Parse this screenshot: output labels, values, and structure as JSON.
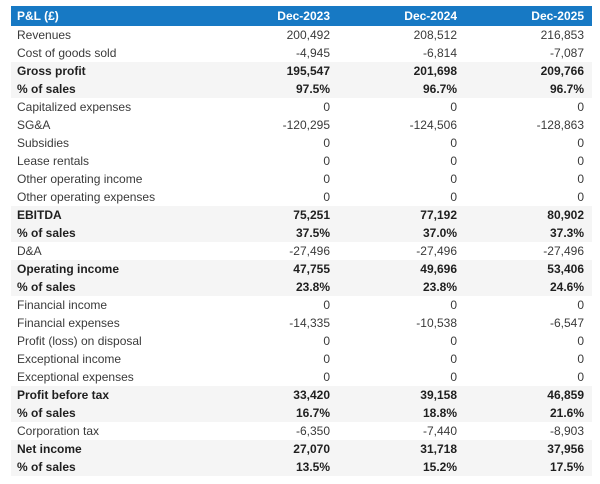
{
  "colors": {
    "header_bg": "#1779c4",
    "header_text": "#ffffff",
    "emphasis_row_bg": "#f5f5f5",
    "body_text": "#3a3a3a"
  },
  "chart_data": {
    "type": "table",
    "title": "P&L (£)",
    "columns": [
      "P&L (£)",
      "Dec-2023",
      "Dec-2024",
      "Dec-2025"
    ],
    "rows": [
      {
        "label": "Revenues",
        "values": [
          "200,492",
          "208,512",
          "216,853"
        ],
        "emphasis": false
      },
      {
        "label": "Cost of goods sold",
        "values": [
          "-4,945",
          "-6,814",
          "-7,087"
        ],
        "emphasis": false
      },
      {
        "label": "Gross profit",
        "values": [
          "195,547",
          "201,698",
          "209,766"
        ],
        "emphasis": true
      },
      {
        "label": "% of sales",
        "values": [
          "97.5%",
          "96.7%",
          "96.7%"
        ],
        "emphasis": true
      },
      {
        "label": "Capitalized expenses",
        "values": [
          "0",
          "0",
          "0"
        ],
        "emphasis": false
      },
      {
        "label": "SG&A",
        "values": [
          "-120,295",
          "-124,506",
          "-128,863"
        ],
        "emphasis": false
      },
      {
        "label": "Subsidies",
        "values": [
          "0",
          "0",
          "0"
        ],
        "emphasis": false
      },
      {
        "label": "Lease rentals",
        "values": [
          "0",
          "0",
          "0"
        ],
        "emphasis": false
      },
      {
        "label": "Other operating income",
        "values": [
          "0",
          "0",
          "0"
        ],
        "emphasis": false
      },
      {
        "label": "Other operating expenses",
        "values": [
          "0",
          "0",
          "0"
        ],
        "emphasis": false
      },
      {
        "label": "EBITDA",
        "values": [
          "75,251",
          "77,192",
          "80,902"
        ],
        "emphasis": true
      },
      {
        "label": "% of sales",
        "values": [
          "37.5%",
          "37.0%",
          "37.3%"
        ],
        "emphasis": true
      },
      {
        "label": "D&A",
        "values": [
          "-27,496",
          "-27,496",
          "-27,496"
        ],
        "emphasis": false
      },
      {
        "label": "Operating income",
        "values": [
          "47,755",
          "49,696",
          "53,406"
        ],
        "emphasis": true
      },
      {
        "label": "% of sales",
        "values": [
          "23.8%",
          "23.8%",
          "24.6%"
        ],
        "emphasis": true
      },
      {
        "label": "Financial income",
        "values": [
          "0",
          "0",
          "0"
        ],
        "emphasis": false
      },
      {
        "label": "Financial expenses",
        "values": [
          "-14,335",
          "-10,538",
          "-6,547"
        ],
        "emphasis": false
      },
      {
        "label": "Profit (loss) on disposal",
        "values": [
          "0",
          "0",
          "0"
        ],
        "emphasis": false
      },
      {
        "label": "Exceptional income",
        "values": [
          "0",
          "0",
          "0"
        ],
        "emphasis": false
      },
      {
        "label": "Exceptional expenses",
        "values": [
          "0",
          "0",
          "0"
        ],
        "emphasis": false
      },
      {
        "label": "Profit before tax",
        "values": [
          "33,420",
          "39,158",
          "46,859"
        ],
        "emphasis": true
      },
      {
        "label": "% of sales",
        "values": [
          "16.7%",
          "18.8%",
          "21.6%"
        ],
        "emphasis": true
      },
      {
        "label": "Corporation tax",
        "values": [
          "-6,350",
          "-7,440",
          "-8,903"
        ],
        "emphasis": false
      },
      {
        "label": "Net income",
        "values": [
          "27,070",
          "31,718",
          "37,956"
        ],
        "emphasis": true
      },
      {
        "label": "% of sales",
        "values": [
          "13.5%",
          "15.2%",
          "17.5%"
        ],
        "emphasis": true
      }
    ]
  }
}
